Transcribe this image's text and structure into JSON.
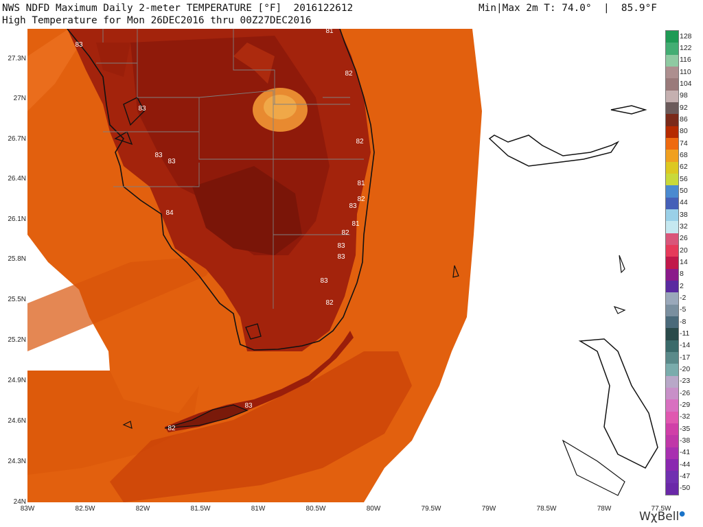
{
  "header": {
    "line1": "NWS NDFD Maximum Daily 2-meter TEMPERATURE [°F]  2016122612",
    "line2": "High Temperature for Mon 26DEC2016 thru 00Z27DEC2016",
    "minmax": "Min|Max 2m T: 74.0°  |  85.9°F"
  },
  "axes": {
    "lat_labels": [
      "27.3N",
      "27N",
      "26.7N",
      "26.4N",
      "26.1N",
      "25.8N",
      "25.5N",
      "25.2N",
      "24.9N",
      "24.6N",
      "24.3N",
      "24N"
    ],
    "lon_labels": [
      "83W",
      "82.5W",
      "82W",
      "81.5W",
      "81W",
      "80.5W",
      "80W",
      "79.5W",
      "79W",
      "78.5W",
      "78W",
      "77.5W"
    ]
  },
  "legend": {
    "labels": [
      "128",
      "122",
      "116",
      "110",
      "104",
      "98",
      "92",
      "86",
      "80",
      "74",
      "68",
      "62",
      "56",
      "50",
      "44",
      "38",
      "32",
      "26",
      "20",
      "14",
      "8",
      "2",
      "-2",
      "-5",
      "-8",
      "-11",
      "-14",
      "-17",
      "-20",
      "-23",
      "-26",
      "-29",
      "-32",
      "-35",
      "-38",
      "-41",
      "-44",
      "-47",
      "-50"
    ],
    "colors": [
      "#1f9a55",
      "#43ad73",
      "#8fcaa2",
      "#ad8f8f",
      "#9a7a7a",
      "#c5b0b0",
      "#6b5a5a",
      "#7a2a1a",
      "#b52a00",
      "#ee6a10",
      "#f0a020",
      "#ddc820",
      "#c9d93a",
      "#4a8ad0",
      "#4560b8",
      "#9ad0e8",
      "#c5e8f0",
      "#d9567a",
      "#e63a5a",
      "#c1184a",
      "#8a1a8a",
      "#5a2aa0",
      "#9aa8ba",
      "#7a8f9f",
      "#4a6a7a",
      "#2a4a4a",
      "#3a6a6a",
      "#5a8a8a",
      "#7aacac",
      "#b8a8c8",
      "#c890c8",
      "#d870c0",
      "#e058b0",
      "#d040a8",
      "#c038a8",
      "#a830b0",
      "#8a28b0",
      "#7030b0",
      "#6a28a8"
    ]
  },
  "station_values": [
    {
      "text": "83"
    },
    {
      "text": "81"
    },
    {
      "text": "82"
    },
    {
      "text": "83"
    },
    {
      "text": "82"
    },
    {
      "text": "83"
    },
    {
      "text": "83"
    },
    {
      "text": "81"
    },
    {
      "text": "82"
    },
    {
      "text": "83"
    },
    {
      "text": "84"
    },
    {
      "text": "81"
    },
    {
      "text": "82"
    },
    {
      "text": "83"
    },
    {
      "text": "83"
    },
    {
      "text": "83"
    },
    {
      "text": "82"
    },
    {
      "text": "83"
    },
    {
      "text": "82"
    }
  ],
  "brand": {
    "text": "WχBell"
  },
  "colors": {
    "ocean_orange": "#e05a0a",
    "land_hot": "#8a1a0a",
    "land_warm": "#a8200a",
    "cool_spot": "#f0a030",
    "coast": "#111111",
    "county": "#808080"
  }
}
